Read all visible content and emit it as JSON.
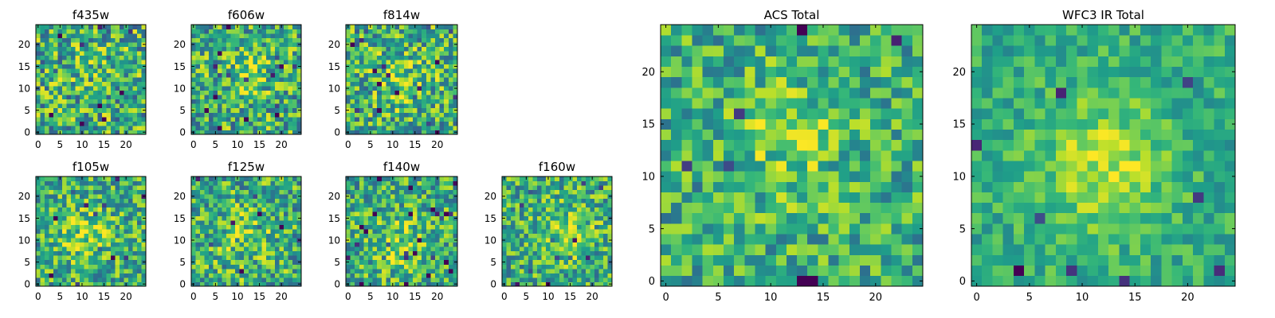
{
  "chart_data": [
    {
      "type": "heatmap",
      "title": "f435w",
      "seed": 11,
      "peak": [
        13,
        14
      ],
      "strength": 0.15,
      "noise": 0.95,
      "size": 25,
      "xticks": [
        0,
        5,
        10,
        15,
        20
      ],
      "yticks": [
        0,
        5,
        10,
        15,
        20
      ],
      "colormap": "viridis"
    },
    {
      "type": "heatmap",
      "title": "f606w",
      "seed": 23,
      "peak": [
        12,
        13
      ],
      "strength": 0.4,
      "noise": 0.9,
      "size": 25,
      "xticks": [
        0,
        5,
        10,
        15,
        20
      ],
      "yticks": [
        0,
        5,
        10,
        15,
        20
      ],
      "colormap": "viridis"
    },
    {
      "type": "heatmap",
      "title": "f814w",
      "seed": 37,
      "peak": [
        12,
        12
      ],
      "strength": 0.45,
      "noise": 0.9,
      "size": 25,
      "xticks": [
        0,
        5,
        10,
        15,
        20
      ],
      "yticks": [
        0,
        5,
        10,
        15,
        20
      ],
      "colormap": "viridis"
    },
    {
      "type": "heatmap",
      "title": "f105w",
      "seed": 41,
      "peak": [
        11,
        11
      ],
      "strength": 0.55,
      "noise": 0.8,
      "size": 25,
      "xticks": [
        0,
        5,
        10,
        15,
        20
      ],
      "yticks": [
        0,
        5,
        10,
        15,
        20
      ],
      "colormap": "viridis"
    },
    {
      "type": "heatmap",
      "title": "f125w",
      "seed": 53,
      "peak": [
        12,
        11
      ],
      "strength": 0.45,
      "noise": 0.85,
      "size": 25,
      "xticks": [
        0,
        5,
        10,
        15,
        20
      ],
      "yticks": [
        0,
        5,
        10,
        15,
        20
      ],
      "colormap": "viridis"
    },
    {
      "type": "heatmap",
      "title": "f140w",
      "seed": 67,
      "peak": [
        11,
        9
      ],
      "strength": 0.5,
      "noise": 0.8,
      "size": 25,
      "xticks": [
        0,
        5,
        10,
        15,
        20
      ],
      "yticks": [
        0,
        5,
        10,
        15,
        20
      ],
      "colormap": "viridis"
    },
    {
      "type": "heatmap",
      "title": "f160w",
      "seed": 79,
      "peak": [
        14,
        12
      ],
      "strength": 0.5,
      "noise": 0.8,
      "size": 25,
      "xticks": [
        0,
        5,
        10,
        15,
        20
      ],
      "yticks": [
        0,
        5,
        10,
        15,
        20
      ],
      "colormap": "viridis"
    },
    {
      "type": "heatmap",
      "title": "ACS Total",
      "seed": 97,
      "peak": [
        12,
        13
      ],
      "strength": 0.45,
      "noise": 0.7,
      "size": 25,
      "xticks": [
        0,
        5,
        10,
        15,
        20
      ],
      "yticks": [
        0,
        5,
        10,
        15,
        20
      ],
      "colormap": "viridis"
    },
    {
      "type": "heatmap",
      "title": "WFC3 IR Total",
      "seed": 131,
      "peak": [
        12,
        11
      ],
      "strength": 0.75,
      "noise": 0.45,
      "size": 25,
      "xticks": [
        0,
        5,
        10,
        15,
        20
      ],
      "yticks": [
        0,
        5,
        10,
        15,
        20
      ],
      "colormap": "viridis"
    }
  ]
}
